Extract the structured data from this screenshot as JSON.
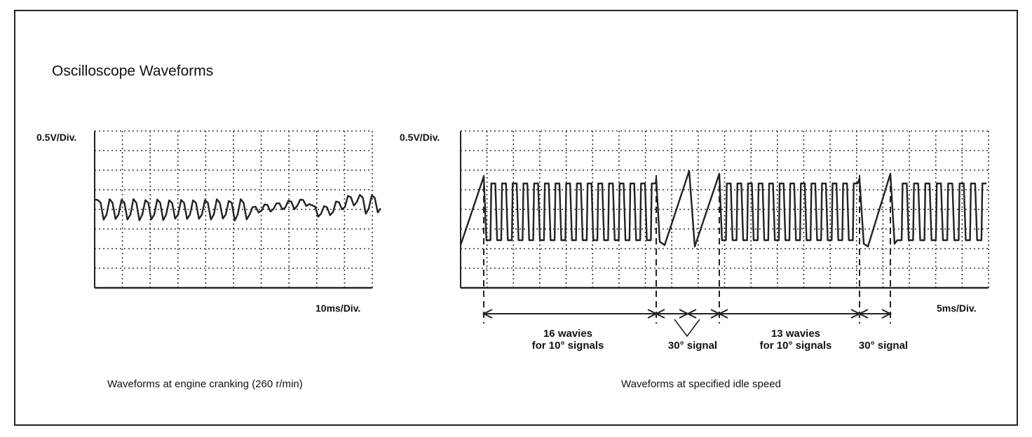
{
  "title": "Oscilloscope Waveforms",
  "left_scope": {
    "volts_per_div": "0.5V/Div.",
    "time_per_div": "10ms/Div.",
    "caption": "Waveforms at engine cranking (260 r/min)"
  },
  "right_scope": {
    "volts_per_div": "0.5V/Div.",
    "time_per_div": "5ms/Div.",
    "caption": "Waveforms at specified idle speed",
    "annotations": {
      "group1_line1": "16 wavies",
      "group1_line2": "for 10° signals",
      "signal30_a": "30° signal",
      "group2_line1": "13 wavies",
      "group2_line2": "for 10° signals",
      "signal30_b": "30° signal"
    }
  },
  "colors": {
    "ink": "#222222",
    "grid": "#333333"
  }
}
